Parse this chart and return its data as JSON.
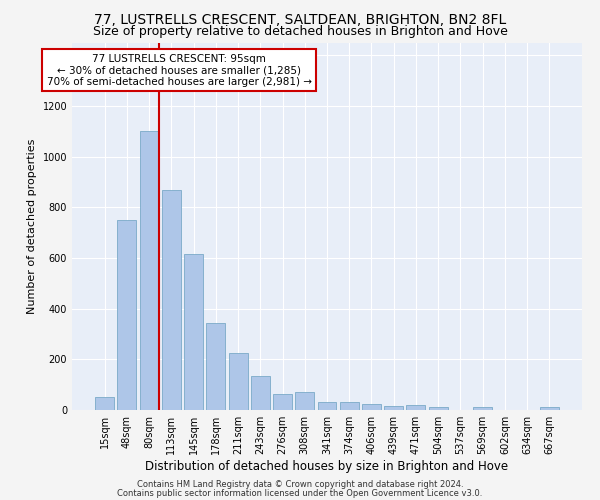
{
  "title1": "77, LUSTRELLS CRESCENT, SALTDEAN, BRIGHTON, BN2 8FL",
  "title2": "Size of property relative to detached houses in Brighton and Hove",
  "xlabel": "Distribution of detached houses by size in Brighton and Hove",
  "ylabel": "Number of detached properties",
  "footer1": "Contains HM Land Registry data © Crown copyright and database right 2024.",
  "footer2": "Contains public sector information licensed under the Open Government Licence v3.0.",
  "bar_labels": [
    "15sqm",
    "48sqm",
    "80sqm",
    "113sqm",
    "145sqm",
    "178sqm",
    "211sqm",
    "243sqm",
    "276sqm",
    "308sqm",
    "341sqm",
    "374sqm",
    "406sqm",
    "439sqm",
    "471sqm",
    "504sqm",
    "537sqm",
    "569sqm",
    "602sqm",
    "634sqm",
    "667sqm"
  ],
  "bar_values": [
    50,
    750,
    1100,
    870,
    615,
    345,
    225,
    135,
    65,
    70,
    30,
    30,
    22,
    15,
    18,
    10,
    0,
    12,
    0,
    0,
    12
  ],
  "bar_color": "#aec6e8",
  "bar_edge_color": "#7aaac8",
  "red_line_color": "#cc0000",
  "annotation_box_color": "#cc0000",
  "annotation_text1": "77 LUSTRELLS CRESCENT: 95sqm",
  "annotation_text2": "← 30% of detached houses are smaller (1,285)",
  "annotation_text3": "70% of semi-detached houses are larger (2,981) →",
  "ylim": [
    0,
    1450
  ],
  "yticks": [
    0,
    200,
    400,
    600,
    800,
    1000,
    1200,
    1400
  ],
  "background_color": "#e8eef8",
  "grid_color": "#ffffff",
  "fig_bg_color": "#f4f4f4",
  "title_fontsize": 10,
  "subtitle_fontsize": 9,
  "ylabel_fontsize": 8,
  "xlabel_fontsize": 8.5,
  "tick_fontsize": 7,
  "footer_fontsize": 6,
  "annot_fontsize": 7.5
}
